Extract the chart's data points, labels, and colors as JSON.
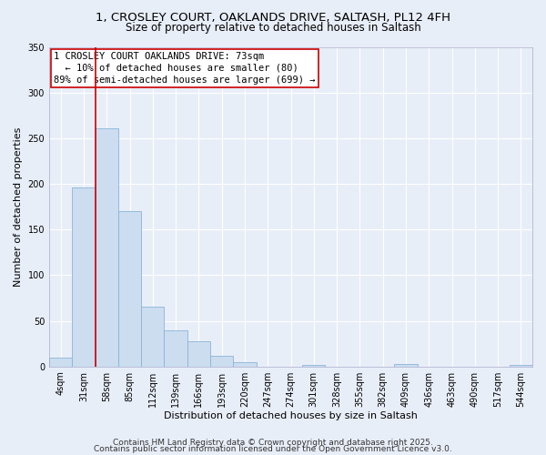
{
  "title_line1": "1, CROSLEY COURT, OAKLANDS DRIVE, SALTASH, PL12 4FH",
  "title_line2": "Size of property relative to detached houses in Saltash",
  "xlabel": "Distribution of detached houses by size in Saltash",
  "ylabel": "Number of detached properties",
  "bar_labels": [
    "4sqm",
    "31sqm",
    "58sqm",
    "85sqm",
    "112sqm",
    "139sqm",
    "166sqm",
    "193sqm",
    "220sqm",
    "247sqm",
    "274sqm",
    "301sqm",
    "328sqm",
    "355sqm",
    "382sqm",
    "409sqm",
    "436sqm",
    "463sqm",
    "490sqm",
    "517sqm",
    "544sqm"
  ],
  "bar_values": [
    10,
    196,
    261,
    170,
    65,
    40,
    28,
    12,
    5,
    0,
    0,
    2,
    0,
    0,
    0,
    3,
    0,
    0,
    0,
    0,
    2
  ],
  "bar_color": "#ccddf0",
  "bar_edgecolor": "#8ab4d8",
  "vline_x": 2.0,
  "vline_color": "#cc0000",
  "ylim": [
    0,
    350
  ],
  "yticks": [
    0,
    50,
    100,
    150,
    200,
    250,
    300,
    350
  ],
  "annotation_title": "1 CROSLEY COURT OAKLANDS DRIVE: 73sqm",
  "annotation_line2": "← 10% of detached houses are smaller (80)",
  "annotation_line3": "89% of semi-detached houses are larger (699) →",
  "annotation_box_facecolor": "#ffffff",
  "annotation_box_edgecolor": "#cc0000",
  "footer_line1": "Contains HM Land Registry data © Crown copyright and database right 2025.",
  "footer_line2": "Contains public sector information licensed under the Open Government Licence v3.0.",
  "background_color": "#e8eef8",
  "grid_color": "#ffffff",
  "title_fontsize": 9.5,
  "subtitle_fontsize": 8.5,
  "axis_label_fontsize": 8,
  "tick_fontsize": 7,
  "annotation_fontsize": 7.5,
  "footer_fontsize": 6.5
}
